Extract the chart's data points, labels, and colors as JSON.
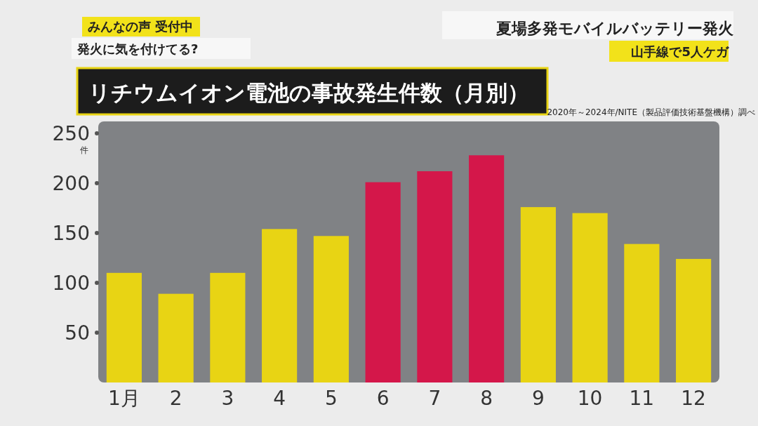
{
  "chart_data": {
    "type": "bar",
    "title": "リチウムイオン電池の事故発生件数（月別）",
    "ylabel": "件",
    "annotations": [
      "2020年～2024年/NITE（製品評価技術基盤機構）調べ",
      "夏場多発モバイルバッテリー発火",
      "山手線で5人ケガ",
      "みんなの声 受付中",
      "発火に気を付けてる?"
    ],
    "categories": [
      "1月",
      "2",
      "3",
      "4",
      "5",
      "6",
      "7",
      "8",
      "9",
      "10",
      "11",
      "12"
    ],
    "values": [
      110,
      89,
      110,
      154,
      147,
      201,
      212,
      228,
      176,
      170,
      139,
      124
    ],
    "colors": [
      "#e8d414",
      "#e8d414",
      "#e8d414",
      "#e8d414",
      "#e8d414",
      "#d4174a",
      "#d4174a",
      "#d4174a",
      "#e8d414",
      "#e8d414",
      "#e8d414",
      "#e8d414"
    ],
    "ylim": [
      0,
      262
    ],
    "yticks": [
      50,
      100,
      150,
      200,
      250
    ],
    "grid": false
  }
}
